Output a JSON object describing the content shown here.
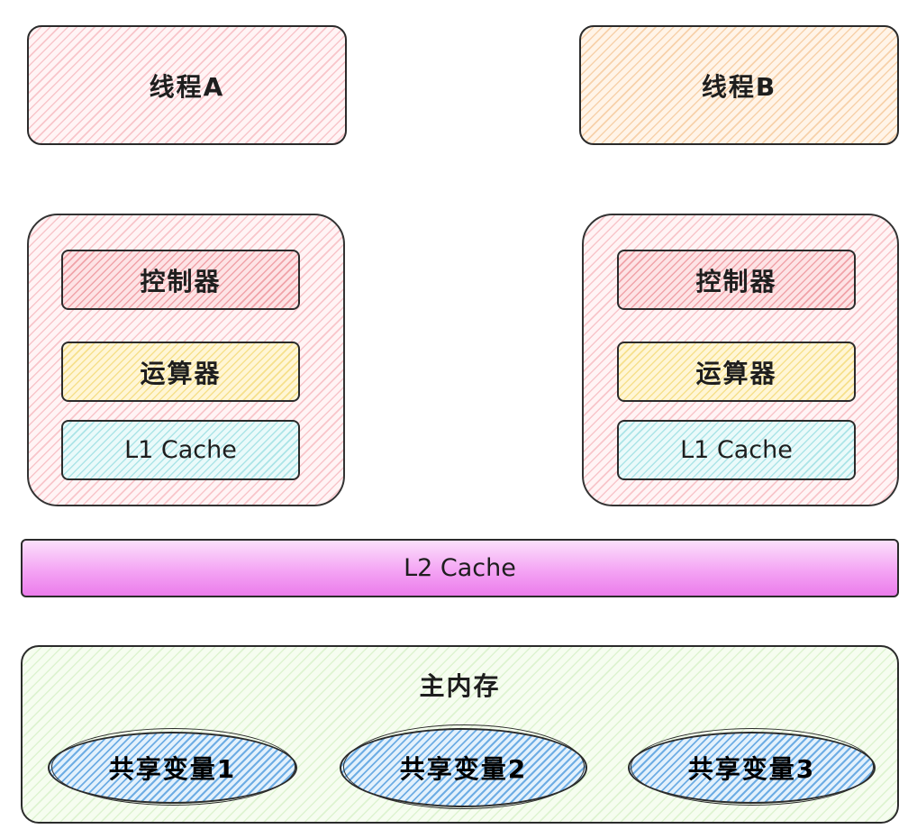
{
  "threads": {
    "a": {
      "label": "线程A"
    },
    "b": {
      "label": "线程B"
    }
  },
  "cores": {
    "left": {
      "controller": "控制器",
      "alu": "运算器",
      "l1": "L1 Cache"
    },
    "right": {
      "controller": "控制器",
      "alu": "运算器",
      "l1": "L1 Cache"
    }
  },
  "l2": {
    "label": "L2 Cache"
  },
  "memory": {
    "label": "主内存",
    "vars": [
      "共享变量1",
      "共享变量2",
      "共享变量3"
    ]
  }
}
